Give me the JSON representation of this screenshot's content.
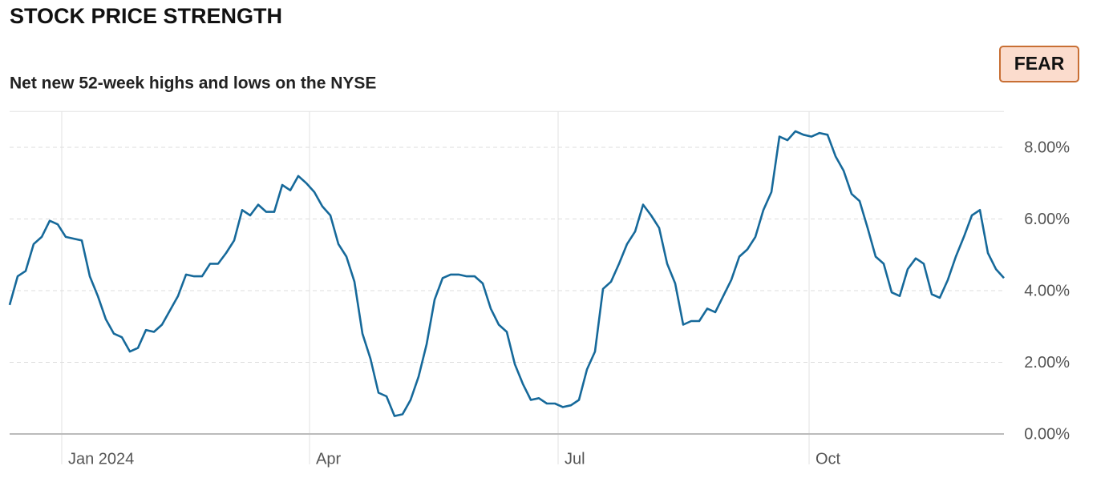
{
  "chart_data": {
    "type": "line",
    "title": "STOCK PRICE STRENGTH",
    "subtitle": "Net new 52-week highs and lows on the NYSE",
    "badge": "FEAR",
    "color": "#16699a",
    "values": [
      3.6,
      4.4,
      4.55,
      5.3,
      5.5,
      5.95,
      5.85,
      5.5,
      5.45,
      5.4,
      4.4,
      3.85,
      3.2,
      2.8,
      2.7,
      2.3,
      2.4,
      2.9,
      2.85,
      3.05,
      3.45,
      3.85,
      4.45,
      4.4,
      4.4,
      4.75,
      4.75,
      5.05,
      5.4,
      6.25,
      6.1,
      6.4,
      6.2,
      6.2,
      6.95,
      6.8,
      7.2,
      7.0,
      6.75,
      6.35,
      6.1,
      5.3,
      4.95,
      4.25,
      2.8,
      2.1,
      1.15,
      1.05,
      0.5,
      0.55,
      0.95,
      1.6,
      2.5,
      3.75,
      4.35,
      4.45,
      4.45,
      4.4,
      4.4,
      4.2,
      3.5,
      3.05,
      2.85,
      1.95,
      1.4,
      0.95,
      1.0,
      0.85,
      0.85,
      0.75,
      0.8,
      0.95,
      1.8,
      2.3,
      4.05,
      4.25,
      4.75,
      5.3,
      5.65,
      6.4,
      6.1,
      5.75,
      4.75,
      4.2,
      3.05,
      3.15,
      3.15,
      3.5,
      3.4,
      3.85,
      4.3,
      4.95,
      5.15,
      5.5,
      6.25,
      6.75,
      8.3,
      8.2,
      8.45,
      8.35,
      8.3,
      8.4,
      8.35,
      7.75,
      7.35,
      6.7,
      6.5,
      5.75,
      4.95,
      4.75,
      3.95,
      3.85,
      4.6,
      4.9,
      4.75,
      3.9,
      3.8,
      4.3,
      4.95,
      5.5,
      6.1,
      6.25,
      5.05,
      4.6,
      4.35
    ],
    "xlim": [
      0,
      124
    ],
    "xticks": [
      {
        "value": 6.5,
        "label": "Jan 2024"
      },
      {
        "value": 37.4,
        "label": "Apr"
      },
      {
        "value": 68.4,
        "label": "Jul"
      },
      {
        "value": 99.7,
        "label": "Oct"
      }
    ],
    "ylim": [
      0,
      9
    ],
    "yticks": [
      {
        "value": 0,
        "label": "0.00%"
      },
      {
        "value": 2,
        "label": "2.00%"
      },
      {
        "value": 4,
        "label": "4.00%"
      },
      {
        "value": 6,
        "label": "6.00%"
      },
      {
        "value": 8,
        "label": "8.00%"
      }
    ],
    "grid": true
  }
}
